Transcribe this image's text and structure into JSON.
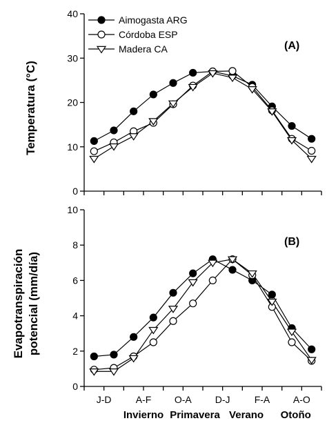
{
  "chart_data": [
    {
      "type": "line",
      "panel_label": "(A)",
      "ylabel": "Temperatura (°C)",
      "ylim": [
        0,
        40
      ],
      "yticks": [
        0,
        10,
        20,
        30,
        40
      ],
      "x": [
        1,
        2,
        3,
        4,
        5,
        6,
        7,
        8,
        9,
        10,
        11,
        12
      ],
      "legend": "top-left",
      "series": [
        {
          "name": "Aimogasta ARG",
          "marker": "circle-filled",
          "values": [
            11.3,
            13.7,
            18.0,
            21.8,
            24.4,
            26.7,
            27.0,
            26.0,
            24.0,
            19.1,
            14.7,
            11.8
          ]
        },
        {
          "name": "Córdoba ESP",
          "marker": "circle-open",
          "values": [
            9.0,
            11.0,
            13.5,
            15.4,
            19.6,
            23.8,
            27.0,
            27.1,
            23.5,
            18.2,
            11.8,
            9.1
          ]
        },
        {
          "name": "Madera CA",
          "marker": "triangle-open",
          "values": [
            7.3,
            10.1,
            12.4,
            15.8,
            19.8,
            23.5,
            26.6,
            25.6,
            23.0,
            18.0,
            11.5,
            7.3
          ]
        }
      ]
    },
    {
      "type": "line",
      "panel_label": "(B)",
      "ylabel": "Evapotranspiración potencial (mm/día)",
      "ylabel_lines": [
        "Evapotranspiración",
        "potencial (mm/día)"
      ],
      "ylim": [
        0,
        10
      ],
      "yticks": [
        0,
        2,
        4,
        6,
        8,
        10
      ],
      "x": [
        1,
        2,
        3,
        4,
        5,
        6,
        7,
        8,
        9,
        10,
        11,
        12
      ],
      "xtick_labels": [
        {
          "x": 1.5,
          "label": "J-D"
        },
        {
          "x": 3.5,
          "label": "A-F"
        },
        {
          "x": 5.5,
          "label": "O-A"
        },
        {
          "x": 7.5,
          "label": "D-J"
        },
        {
          "x": 9.5,
          "label": "F-A"
        },
        {
          "x": 11.5,
          "label": "A-O"
        }
      ],
      "season_labels": [
        {
          "x": 3.5,
          "label": "Invierno"
        },
        {
          "x": 6.1,
          "label": "Primavera"
        },
        {
          "x": 8.7,
          "label": "Verano"
        },
        {
          "x": 11.2,
          "label": "Otoño"
        }
      ],
      "series": [
        {
          "name": "Aimogasta ARG",
          "marker": "circle-filled",
          "values": [
            1.7,
            1.8,
            2.8,
            3.9,
            5.3,
            6.4,
            7.2,
            6.6,
            6.0,
            5.2,
            3.3,
            2.1
          ]
        },
        {
          "name": "Córdoba ESP",
          "marker": "circle-open",
          "values": [
            0.95,
            1.05,
            1.7,
            2.5,
            3.7,
            4.7,
            6.0,
            7.2,
            6.3,
            4.5,
            2.5,
            1.45
          ]
        },
        {
          "name": "Madera CA",
          "marker": "triangle-open",
          "values": [
            0.85,
            0.85,
            1.6,
            3.2,
            4.4,
            5.9,
            7.0,
            7.2,
            6.4,
            4.8,
            3.1,
            1.5
          ]
        }
      ]
    }
  ]
}
